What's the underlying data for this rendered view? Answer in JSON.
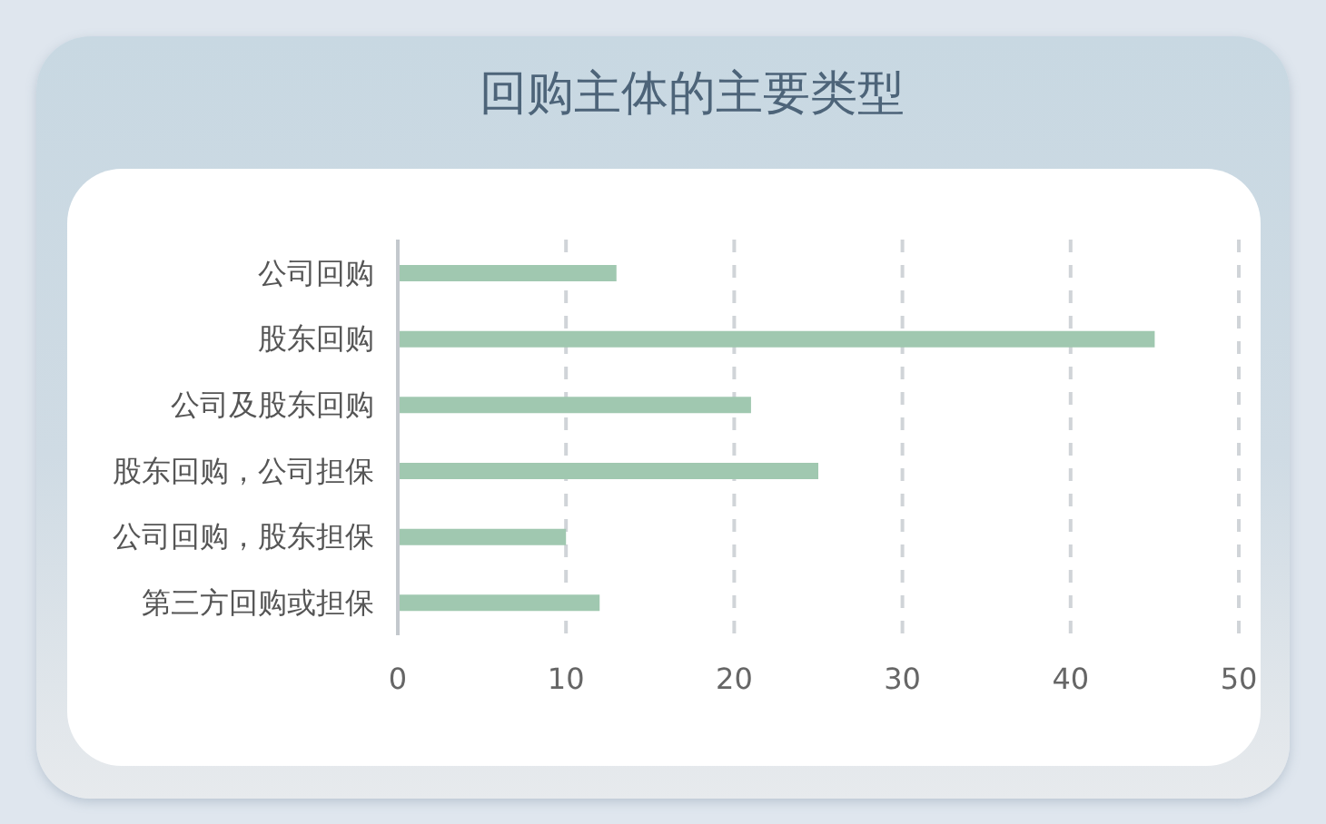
{
  "chart_data": {
    "type": "bar",
    "orientation": "horizontal",
    "title": "回购主体的主要类型",
    "categories": [
      "公司回购",
      "股东回购",
      "公司及股东回购",
      "股东回购，公司担保",
      "公司回购，股东担保",
      "第三方回购或担保"
    ],
    "values": [
      13,
      45,
      21,
      25,
      10,
      12
    ],
    "color": "#a0c8b0",
    "xlim": [
      0,
      50
    ],
    "xticks": [
      0,
      10,
      20,
      30,
      40,
      50
    ],
    "grid": "x"
  }
}
